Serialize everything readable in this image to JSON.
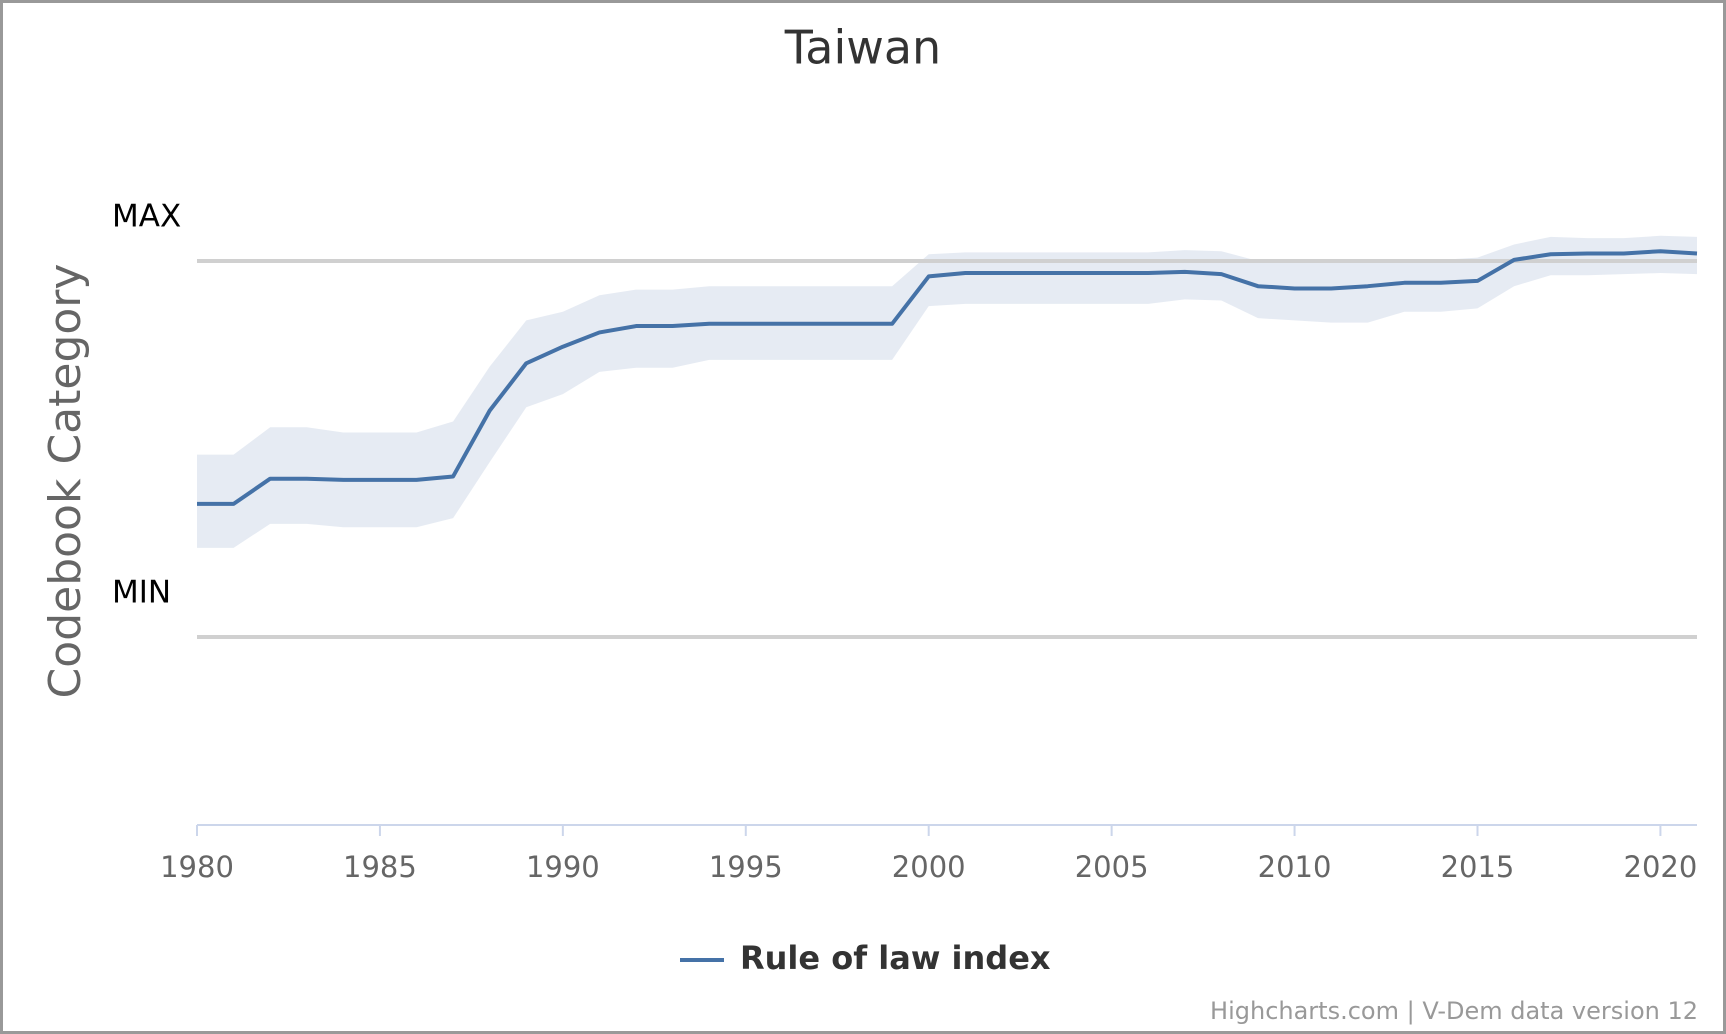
{
  "chart_data": {
    "type": "line",
    "title": "Taiwan",
    "y_axis_label": "Codebook Category",
    "credits": "Highcharts.com | V-Dem data version 12",
    "x": [
      1980,
      1981,
      1982,
      1983,
      1984,
      1985,
      1986,
      1987,
      1988,
      1989,
      1990,
      1991,
      1992,
      1993,
      1994,
      1995,
      1996,
      1997,
      1998,
      1999,
      2000,
      2001,
      2002,
      2003,
      2004,
      2005,
      2006,
      2007,
      2008,
      2009,
      2010,
      2011,
      2012,
      2013,
      2014,
      2015,
      2016,
      2017,
      2018,
      2019,
      2020,
      2021
    ],
    "series": [
      {
        "name": "Rule of law index",
        "color": "#4572a7",
        "band_color": "#e3e9f2",
        "values": [
          0.354,
          0.354,
          0.421,
          0.421,
          0.418,
          0.418,
          0.418,
          0.427,
          0.602,
          0.728,
          0.772,
          0.81,
          0.827,
          0.827,
          0.833,
          0.833,
          0.833,
          0.833,
          0.833,
          0.833,
          0.959,
          0.968,
          0.968,
          0.968,
          0.968,
          0.968,
          0.968,
          0.971,
          0.965,
          0.933,
          0.927,
          0.927,
          0.933,
          0.942,
          0.942,
          0.947,
          1.003,
          1.018,
          1.02,
          1.02,
          1.026,
          1.02
        ],
        "upper": [
          0.485,
          0.485,
          0.558,
          0.558,
          0.544,
          0.544,
          0.544,
          0.573,
          0.719,
          0.842,
          0.865,
          0.909,
          0.924,
          0.924,
          0.933,
          0.933,
          0.933,
          0.933,
          0.933,
          0.933,
          1.018,
          1.023,
          1.023,
          1.023,
          1.023,
          1.023,
          1.023,
          1.029,
          1.026,
          1.0,
          0.997,
          0.997,
          0.997,
          1.003,
          1.003,
          1.009,
          1.044,
          1.064,
          1.061,
          1.061,
          1.067,
          1.064
        ],
        "lower": [
          0.237,
          0.237,
          0.301,
          0.301,
          0.292,
          0.292,
          0.292,
          0.316,
          0.465,
          0.611,
          0.646,
          0.705,
          0.716,
          0.716,
          0.737,
          0.737,
          0.737,
          0.737,
          0.737,
          0.737,
          0.88,
          0.886,
          0.886,
          0.886,
          0.886,
          0.886,
          0.886,
          0.898,
          0.895,
          0.848,
          0.842,
          0.836,
          0.836,
          0.865,
          0.865,
          0.874,
          0.933,
          0.962,
          0.962,
          0.965,
          0.968,
          0.965
        ]
      }
    ],
    "xlim": [
      1980,
      2021
    ],
    "xticks": [
      1980,
      1985,
      1990,
      1995,
      2000,
      2005,
      2010,
      2015,
      2020
    ],
    "ylim": [
      -0.5,
      1.25
    ],
    "yticks": [
      {
        "value": 0,
        "label": "MIN"
      },
      {
        "value": 1,
        "label": "MAX"
      }
    ],
    "grid": true
  }
}
